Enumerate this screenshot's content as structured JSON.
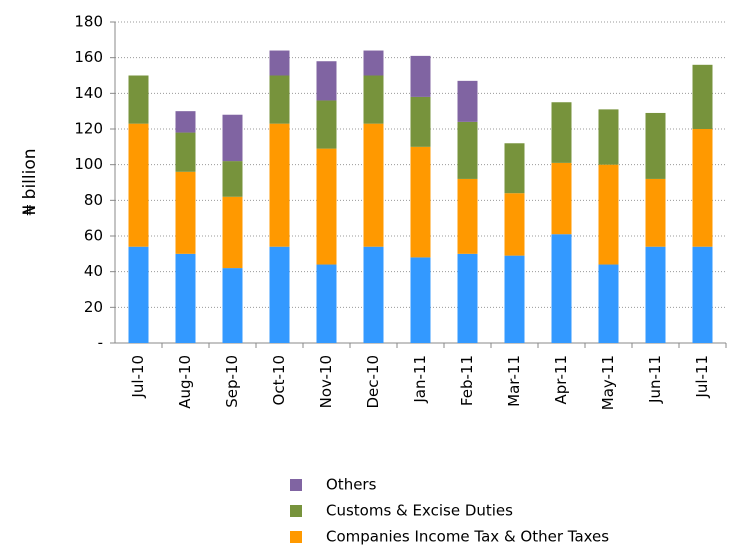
{
  "chart_data": {
    "type": "stacked_bar",
    "y_label": "₦ billion",
    "categories": [
      "Jul-10",
      "Aug-10",
      "Sep-10",
      "Oct-10",
      "Nov-10",
      "Dec-10",
      "Jan-11",
      "Feb-11",
      "Mar-11",
      "Apr-11",
      "May-11",
      "Jun-11",
      "Jul-11"
    ],
    "series": [
      {
        "color": "#3399ff",
        "values": [
          54,
          50,
          42,
          54,
          44,
          54,
          48,
          50,
          49,
          61,
          44,
          54,
          54
        ]
      },
      {
        "name": "Companies Income Tax & Other Taxes",
        "color": "#ff9900",
        "values": [
          69,
          46,
          40,
          69,
          65,
          69,
          62,
          42,
          35,
          40,
          56,
          38,
          66
        ]
      },
      {
        "name": "Customs & Excise Duties",
        "color": "#77933c",
        "values": [
          27,
          22,
          20,
          27,
          27,
          27,
          28,
          32,
          28,
          34,
          31,
          37,
          36
        ]
      },
      {
        "name": "Others",
        "color": "#8064a2",
        "values": [
          0,
          12,
          26,
          14,
          22,
          14,
          23,
          23,
          0,
          0,
          0,
          0,
          0
        ]
      }
    ],
    "ylim": [
      0,
      180
    ],
    "yticks": [
      {
        "value": 0,
        "label": "-"
      },
      20,
      40,
      60,
      80,
      100,
      120,
      140,
      160,
      180
    ],
    "grid": true
  }
}
